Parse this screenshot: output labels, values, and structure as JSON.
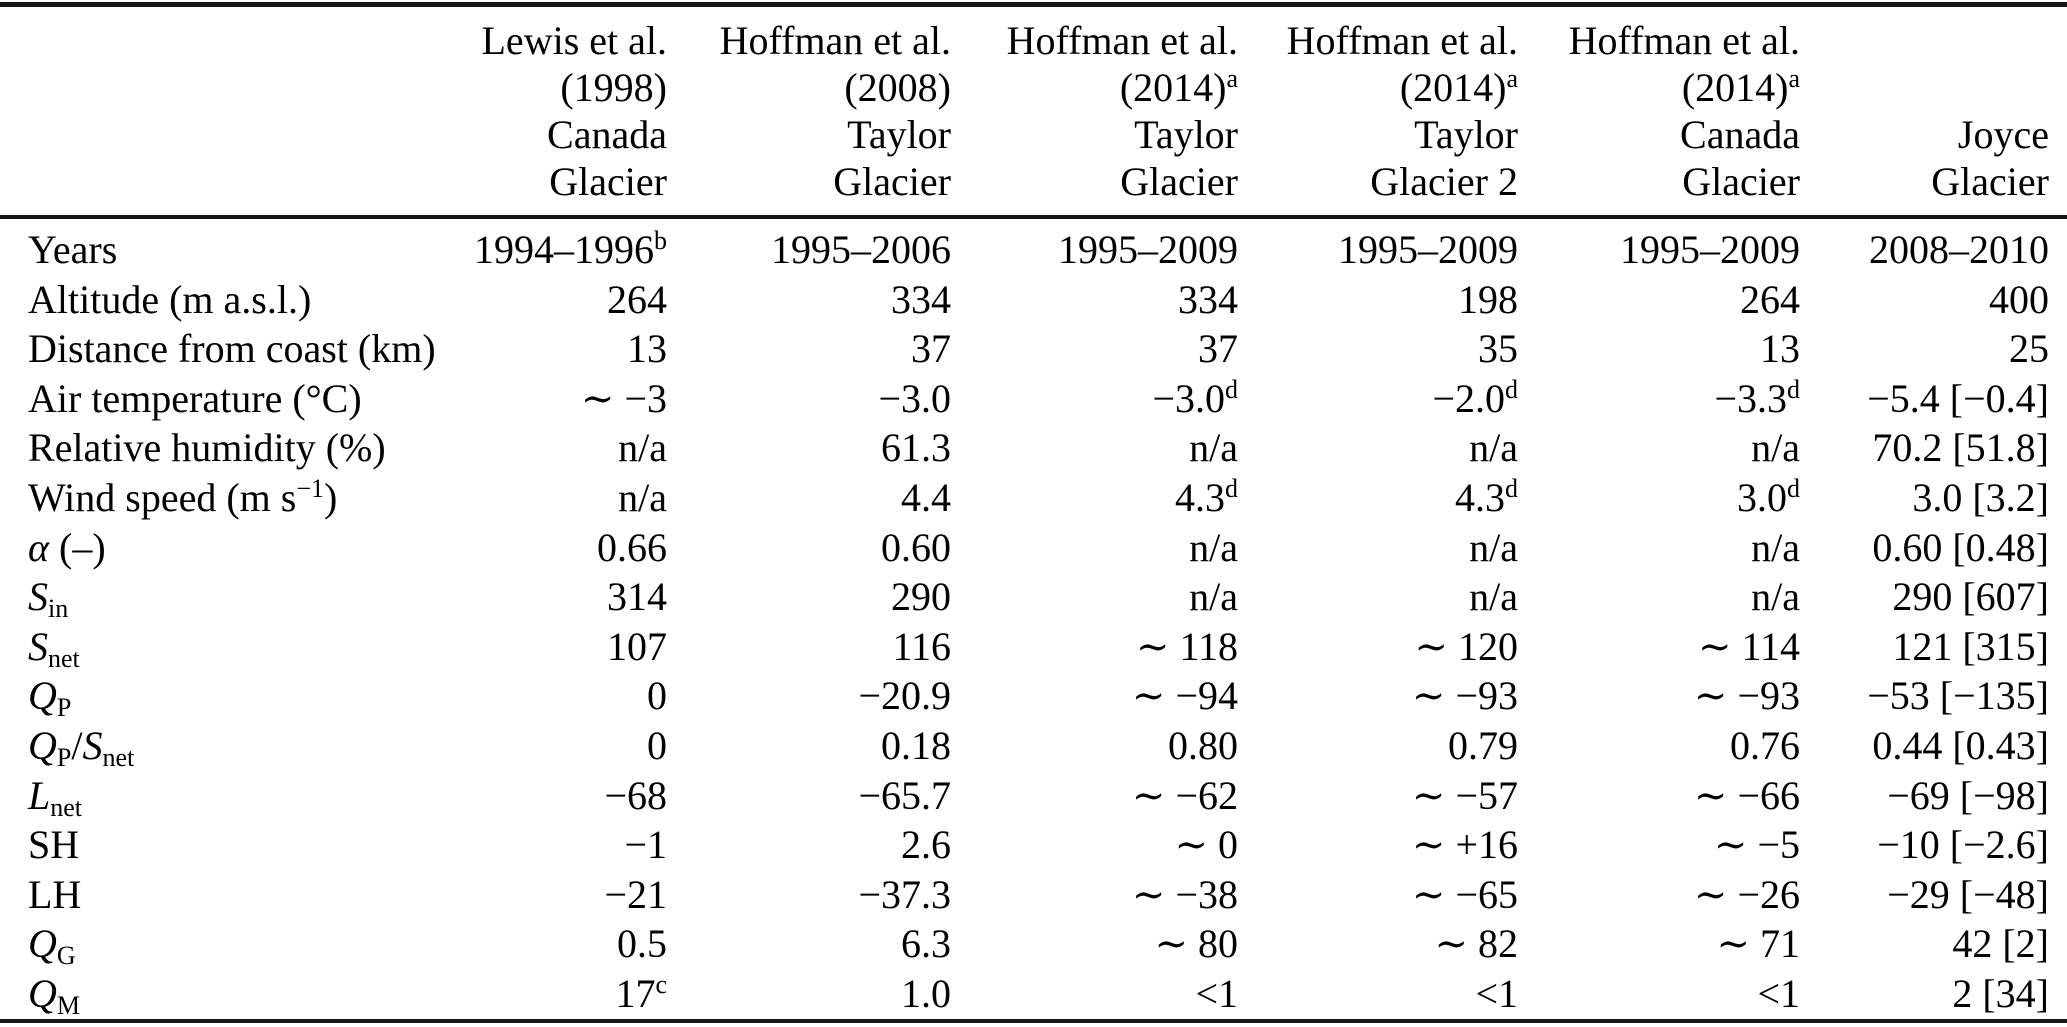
{
  "colors": {
    "text": "#000000",
    "rule": "#161616",
    "background": "#ffffff"
  },
  "table": {
    "columns": [
      {
        "id": "row-label-column",
        "lines": []
      },
      {
        "id": "lewis-1998-canada",
        "lines": [
          {
            "t": "Lewis et al."
          },
          {
            "t": "(1998)"
          },
          {
            "t": "Canada"
          },
          {
            "t": "Glacier"
          }
        ]
      },
      {
        "id": "hoffman-2008-taylor",
        "lines": [
          {
            "t": "Hoffman et al."
          },
          {
            "t": "(2008)"
          },
          {
            "t": "Taylor"
          },
          {
            "t": "Glacier"
          }
        ]
      },
      {
        "id": "hoffman-2014-taylor",
        "lines": [
          {
            "t": "Hoffman et al."
          },
          {
            "t": "(2014)",
            "sup": "a"
          },
          {
            "t": "Taylor"
          },
          {
            "t": "Glacier"
          }
        ]
      },
      {
        "id": "hoffman-2014-taylor2",
        "lines": [
          {
            "t": "Hoffman et al."
          },
          {
            "t": "(2014)",
            "sup": "a"
          },
          {
            "t": "Taylor"
          },
          {
            "t": "Glacier 2"
          }
        ]
      },
      {
        "id": "hoffman-2014-canada",
        "lines": [
          {
            "t": "Hoffman et al."
          },
          {
            "t": "(2014)",
            "sup": "a"
          },
          {
            "t": "Canada"
          },
          {
            "t": "Glacier"
          }
        ]
      },
      {
        "id": "joyce",
        "lines": [
          {
            "t": "Joyce"
          },
          {
            "t": "Glacier"
          }
        ]
      }
    ],
    "rows": [
      {
        "id": "years",
        "label": [
          {
            "t": "Years"
          }
        ],
        "cells": [
          {
            "t": "1994–1996",
            "sup": "b"
          },
          {
            "t": "1995–2006"
          },
          {
            "t": "1995–2009"
          },
          {
            "t": "1995–2009"
          },
          {
            "t": "1995–2009"
          },
          {
            "t": "2008–2010"
          }
        ]
      },
      {
        "id": "altitude",
        "label": [
          {
            "t": "Altitude (m a.s.l.)"
          }
        ],
        "cells": [
          {
            "t": "264"
          },
          {
            "t": "334"
          },
          {
            "t": "334"
          },
          {
            "t": "198"
          },
          {
            "t": "264"
          },
          {
            "t": "400"
          }
        ]
      },
      {
        "id": "distance-from-coast",
        "label": [
          {
            "t": "Distance from coast (km)"
          }
        ],
        "cells": [
          {
            "t": "13"
          },
          {
            "t": "37"
          },
          {
            "t": "37"
          },
          {
            "t": "35"
          },
          {
            "t": "13"
          },
          {
            "t": "25"
          }
        ]
      },
      {
        "id": "air-temperature",
        "label": [
          {
            "t": "Air temperature (°C)"
          }
        ],
        "cells": [
          {
            "t": "∼ −3"
          },
          {
            "t": "−3.0"
          },
          {
            "t": "−3.0",
            "sup": "d"
          },
          {
            "t": "−2.0",
            "sup": "d"
          },
          {
            "t": "−3.3",
            "sup": "d"
          },
          {
            "t": "−5.4 [−0.4]"
          }
        ]
      },
      {
        "id": "relative-humidity",
        "label": [
          {
            "t": "Relative humidity (%)"
          }
        ],
        "cells": [
          {
            "t": "n/a"
          },
          {
            "t": "61.3"
          },
          {
            "t": "n/a"
          },
          {
            "t": "n/a"
          },
          {
            "t": "n/a"
          },
          {
            "t": "70.2 [51.8]"
          }
        ]
      },
      {
        "id": "wind-speed",
        "label": [
          {
            "t": "Wind speed (m s"
          },
          {
            "t": "−1",
            "k": "sup"
          },
          {
            "t": ")"
          }
        ],
        "cells": [
          {
            "t": "n/a"
          },
          {
            "t": "4.4"
          },
          {
            "t": "4.3",
            "sup": "d"
          },
          {
            "t": "4.3",
            "sup": "d"
          },
          {
            "t": "3.0",
            "sup": "d"
          },
          {
            "t": "3.0 [3.2]"
          }
        ]
      },
      {
        "id": "albedo",
        "label": [
          {
            "t": "α",
            "k": "i"
          },
          {
            "t": " (–)"
          }
        ],
        "cells": [
          {
            "t": "0.66"
          },
          {
            "t": "0.60"
          },
          {
            "t": "n/a"
          },
          {
            "t": "n/a"
          },
          {
            "t": "n/a"
          },
          {
            "t": "0.60 [0.48]"
          }
        ]
      },
      {
        "id": "s-in",
        "label": [
          {
            "t": "S",
            "k": "i"
          },
          {
            "t": "in",
            "k": "sub"
          }
        ],
        "cells": [
          {
            "t": "314"
          },
          {
            "t": "290"
          },
          {
            "t": "n/a"
          },
          {
            "t": "n/a"
          },
          {
            "t": "n/a"
          },
          {
            "t": "290 [607]"
          }
        ]
      },
      {
        "id": "s-net",
        "label": [
          {
            "t": "S",
            "k": "i"
          },
          {
            "t": "net",
            "k": "sub"
          }
        ],
        "cells": [
          {
            "t": "107"
          },
          {
            "t": "116"
          },
          {
            "t": "∼ 118"
          },
          {
            "t": "∼ 120"
          },
          {
            "t": "∼ 114"
          },
          {
            "t": "121 [315]"
          }
        ]
      },
      {
        "id": "q-p",
        "label": [
          {
            "t": "Q",
            "k": "i"
          },
          {
            "t": "P",
            "k": "sub"
          }
        ],
        "cells": [
          {
            "t": "0"
          },
          {
            "t": "−20.9"
          },
          {
            "t": "∼ −94"
          },
          {
            "t": "∼ −93"
          },
          {
            "t": "∼ −93"
          },
          {
            "t": "−53 [−135]"
          }
        ]
      },
      {
        "id": "q-p-over-s-net",
        "label": [
          {
            "t": "Q",
            "k": "i"
          },
          {
            "t": "P",
            "k": "sub"
          },
          {
            "t": "/"
          },
          {
            "t": "S",
            "k": "i"
          },
          {
            "t": "net",
            "k": "sub"
          }
        ],
        "cells": [
          {
            "t": "0"
          },
          {
            "t": "0.18"
          },
          {
            "t": "0.80"
          },
          {
            "t": "0.79"
          },
          {
            "t": "0.76"
          },
          {
            "t": "0.44 [0.43]"
          }
        ]
      },
      {
        "id": "l-net",
        "label": [
          {
            "t": "L",
            "k": "i"
          },
          {
            "t": "net",
            "k": "sub"
          }
        ],
        "cells": [
          {
            "t": "−68"
          },
          {
            "t": "−65.7"
          },
          {
            "t": "∼ −62"
          },
          {
            "t": "∼ −57"
          },
          {
            "t": "∼ −66"
          },
          {
            "t": "−69 [−98]"
          }
        ]
      },
      {
        "id": "sh",
        "label": [
          {
            "t": "SH"
          }
        ],
        "cells": [
          {
            "t": "−1"
          },
          {
            "t": "2.6"
          },
          {
            "t": "∼ 0"
          },
          {
            "t": "∼ +16"
          },
          {
            "t": "∼ −5"
          },
          {
            "t": "−10 [−2.6]"
          }
        ]
      },
      {
        "id": "lh",
        "label": [
          {
            "t": "LH"
          }
        ],
        "cells": [
          {
            "t": "−21"
          },
          {
            "t": "−37.3"
          },
          {
            "t": "∼ −38"
          },
          {
            "t": "∼ −65"
          },
          {
            "t": "∼ −26"
          },
          {
            "t": "−29 [−48]"
          }
        ]
      },
      {
        "id": "q-g",
        "label": [
          {
            "t": "Q",
            "k": "i"
          },
          {
            "t": "G",
            "k": "sub"
          }
        ],
        "cells": [
          {
            "t": "0.5"
          },
          {
            "t": "6.3"
          },
          {
            "t": "∼ 80"
          },
          {
            "t": "∼ 82"
          },
          {
            "t": "∼ 71"
          },
          {
            "t": "42 [2]"
          }
        ]
      },
      {
        "id": "q-m",
        "label": [
          {
            "t": "Q",
            "k": "i"
          },
          {
            "t": "M",
            "k": "sub"
          }
        ],
        "cells": [
          {
            "t": "17",
            "sup": "c"
          },
          {
            "t": "1.0"
          },
          {
            "t": "<1"
          },
          {
            "t": "<1"
          },
          {
            "t": "<1"
          },
          {
            "t": "2 [34]"
          }
        ]
      }
    ]
  }
}
